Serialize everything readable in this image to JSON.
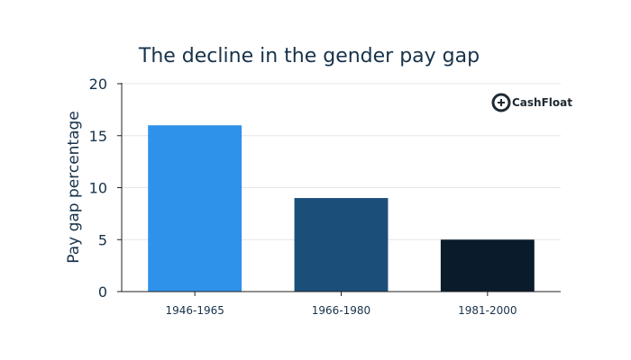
{
  "chart_data": {
    "type": "bar",
    "title": "The decline in the gender pay gap",
    "xlabel": "",
    "ylabel": "Pay gap percentage",
    "categories": [
      "1946-1965",
      "1966-1980",
      "1981-2000"
    ],
    "values": [
      16,
      9,
      5
    ],
    "bar_colors": [
      "#2f92ea",
      "#1c4e7a",
      "#0a1b2b"
    ],
    "ylim": [
      0,
      20
    ],
    "yticks": [
      0,
      5,
      10,
      15,
      20
    ],
    "grid": true,
    "legend": "none"
  },
  "logo": {
    "text": "CashFloat",
    "icon": "cashfloat-logo-icon"
  }
}
